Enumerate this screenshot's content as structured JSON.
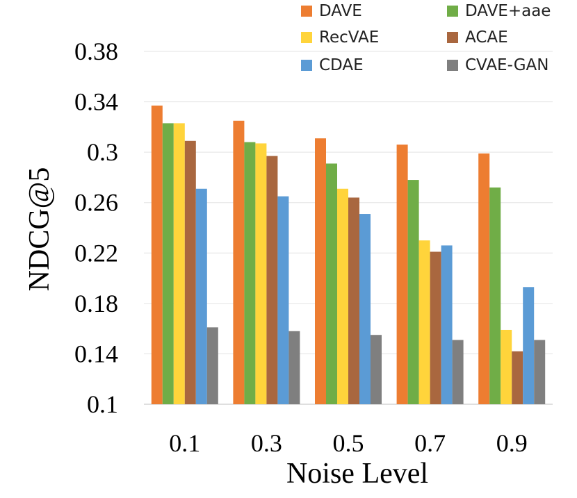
{
  "chart_data": {
    "type": "bar",
    "title": "",
    "xlabel": "Noise Level",
    "ylabel": "NDCG@5",
    "categories": [
      "0.1",
      "0.3",
      "0.5",
      "0.7",
      "0.9"
    ],
    "ylim": [
      0.1,
      0.38
    ],
    "yticks": [
      "0.1",
      "0.14",
      "0.18",
      "0.22",
      "0.26",
      "0.3",
      "0.34",
      "0.38"
    ],
    "grid": true,
    "legend_position": "top-right",
    "series": [
      {
        "name": "DAVE",
        "color": "#ED7D31",
        "values": [
          0.337,
          0.325,
          0.311,
          0.306,
          0.299
        ]
      },
      {
        "name": "DAVE+aae",
        "color": "#70AD47",
        "values": [
          0.323,
          0.308,
          0.291,
          0.278,
          0.272
        ]
      },
      {
        "name": "RecVAE",
        "color": "#FFD43B",
        "values": [
          0.323,
          0.307,
          0.271,
          0.23,
          0.159
        ]
      },
      {
        "name": "ACAE",
        "color": "#A9673F",
        "values": [
          0.309,
          0.297,
          0.264,
          0.221,
          0.142
        ]
      },
      {
        "name": "CDAE",
        "color": "#5B9BD5",
        "values": [
          0.271,
          0.265,
          0.251,
          0.226,
          0.193
        ]
      },
      {
        "name": "CVAE-GAN",
        "color": "#7F7F7F",
        "values": [
          0.161,
          0.158,
          0.155,
          0.151,
          0.151
        ]
      }
    ]
  }
}
